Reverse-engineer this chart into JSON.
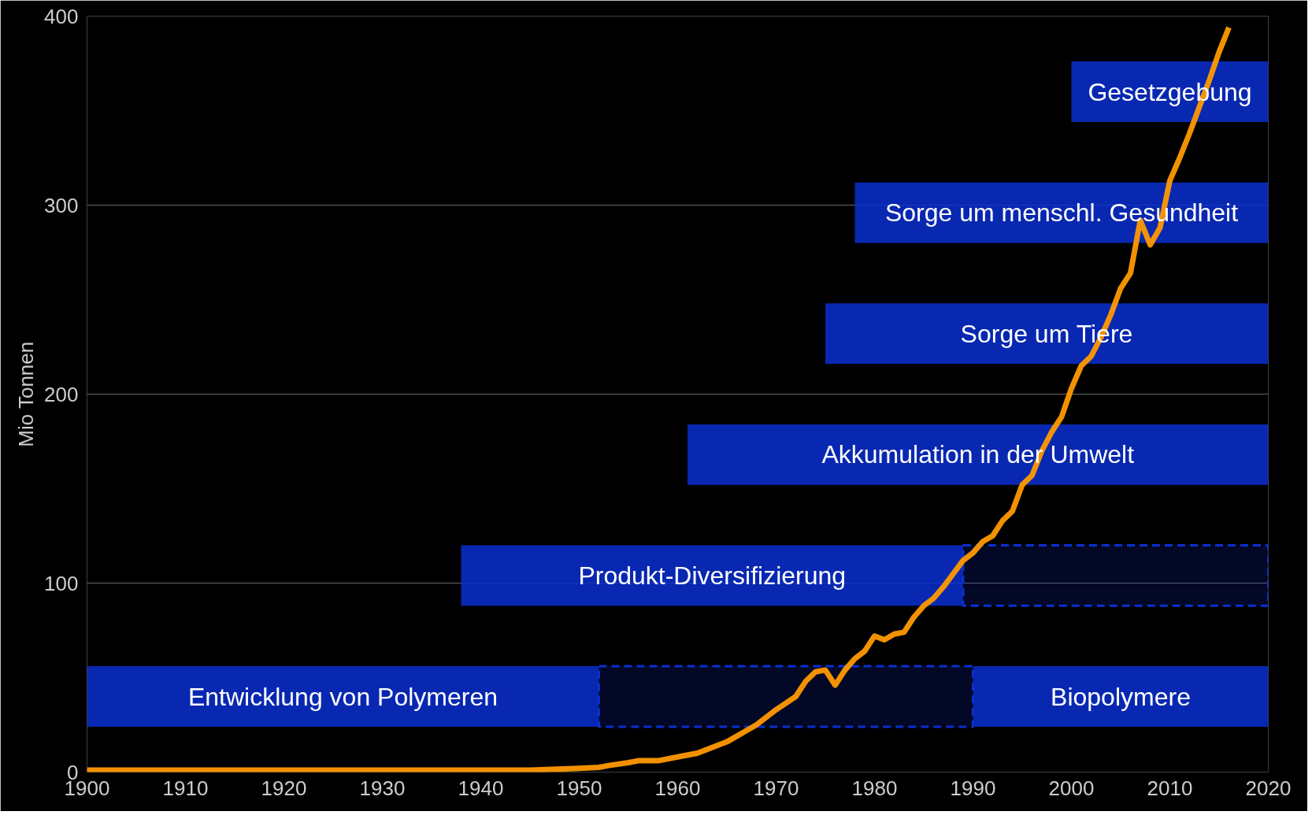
{
  "chart_data": {
    "type": "line",
    "ylabel": "Mio Tonnen",
    "x": [
      1900,
      1910,
      1920,
      1930,
      1940,
      1945,
      1950,
      1952,
      1953,
      1955,
      1956,
      1958,
      1960,
      1962,
      1965,
      1967,
      1968,
      1970,
      1972,
      1973,
      1974,
      1975,
      1976,
      1977,
      1978,
      1979,
      1980,
      1981,
      1982,
      1983,
      1984,
      1985,
      1986,
      1987,
      1988,
      1989,
      1990,
      1991,
      1992,
      1993,
      1994,
      1995,
      1996,
      1997,
      1998,
      1999,
      2000,
      2001,
      2002,
      2003,
      2004,
      2005,
      2006,
      2007,
      2008,
      2009,
      2010,
      2011,
      2012,
      2013,
      2014,
      2015,
      2016
    ],
    "series": [
      {
        "color": "#ff9900",
        "values": [
          1,
          1,
          1,
          1,
          1,
          1,
          2,
          2.5,
          3.5,
          5,
          6,
          6,
          8,
          10,
          16,
          22,
          25,
          33,
          40,
          48,
          53,
          54,
          46,
          54,
          60,
          64,
          72,
          70,
          73,
          74,
          82,
          88,
          92,
          98,
          105,
          112,
          116,
          122,
          125,
          133,
          138,
          152,
          157,
          170,
          180,
          188,
          203,
          215,
          220,
          230,
          242,
          256,
          264,
          292,
          279,
          288,
          313,
          325,
          338,
          352,
          366,
          381,
          394
        ]
      }
    ],
    "xlim": [
      1900,
      2020
    ],
    "ylim": [
      0,
      400
    ],
    "xticks": [
      1900,
      1910,
      1920,
      1930,
      1940,
      1950,
      1960,
      1970,
      1980,
      1990,
      2000,
      2010,
      2020
    ],
    "yticks": [
      0,
      100,
      200,
      300,
      400
    ],
    "grid": "y",
    "marker": "none",
    "line_style": "solid",
    "bands": [
      {
        "axis": "x",
        "from": 1900,
        "to": 1952,
        "label": "Entwicklung von Polymeren",
        "color": "#0b2fd0"
      },
      {
        "axis": "x",
        "from": 1952,
        "to": 1990,
        "color": "#0b2fd0"
      },
      {
        "axis": "x",
        "from": 1990,
        "to": 2020,
        "label": "Biopolymere",
        "color": "#0b2fd0"
      },
      {
        "axis": "x",
        "from": 1938,
        "to": 1989,
        "label": "Produkt-Diversifizierung",
        "color": "#0b2fd0"
      },
      {
        "axis": "x",
        "from": 1989,
        "to": 2020,
        "color": "#0b2fd0"
      },
      {
        "axis": "x",
        "from": 1961,
        "to": 2020,
        "label": "Akkumulation in der Umwelt",
        "color": "#0b2fd0"
      },
      {
        "axis": "x",
        "from": 1975,
        "to": 2020,
        "label": "Sorge um Tiere",
        "color": "#0b2fd0"
      },
      {
        "axis": "x",
        "from": 1978,
        "to": 2020,
        "label": "Sorge um menschl. Gesundheit",
        "color": "#0b2fd0"
      },
      {
        "axis": "x",
        "from": 2000,
        "to": 2020,
        "label": "Gesetzgebung",
        "color": "#0b2fd0"
      }
    ]
  }
}
